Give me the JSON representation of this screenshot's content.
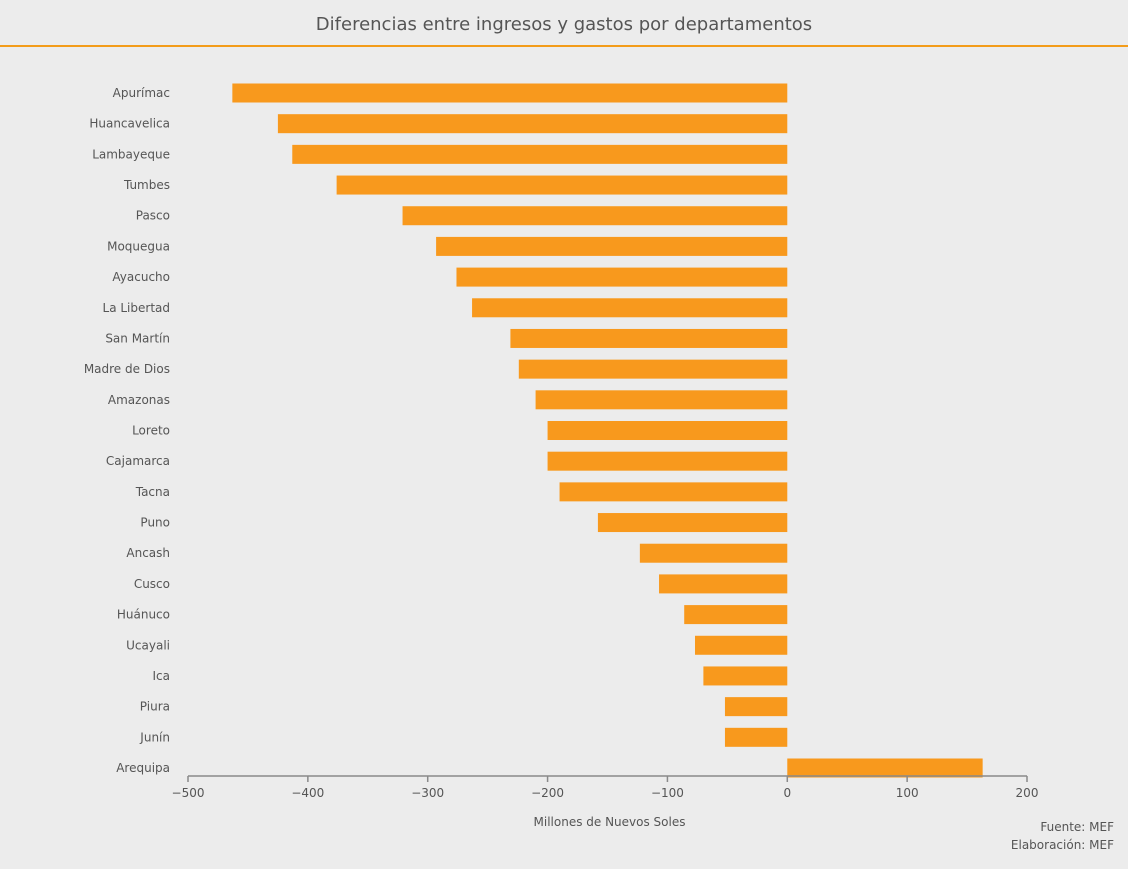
{
  "title": "Diferencias entre ingresos y gastos por departamentos",
  "footer": {
    "source": "Fuente: MEF",
    "credit": "Elaboración: MEF"
  },
  "chart_data": {
    "type": "bar",
    "orientation": "horizontal",
    "title": "Diferencias entre ingresos y gastos por departamentos",
    "xlabel": "Millones de Nuevos Soles",
    "ylabel": "",
    "xlim": [
      -500,
      200
    ],
    "xticks": [
      -500,
      -400,
      -300,
      -200,
      -100,
      0,
      100,
      200
    ],
    "xtick_labels": [
      "−500",
      "−400",
      "−300",
      "−200",
      "−100",
      "0",
      "100",
      "200"
    ],
    "grid": false,
    "bar_color": "#f8991d",
    "categories": [
      "Apurímac",
      "Huancavelica",
      "Lambayeque",
      "Tumbes",
      "Pasco",
      "Moquegua",
      "Ayacucho",
      "La Libertad",
      "San Martín",
      "Madre de Dios",
      "Amazonas",
      "Loreto",
      "Cajamarca",
      "Tacna",
      "Puno",
      "Ancash",
      "Cusco",
      "Huánuco",
      "Ucayali",
      "Ica",
      "Piura",
      "Junín",
      "Arequipa"
    ],
    "values": [
      -463,
      -425,
      -413,
      -376,
      -321,
      -293,
      -276,
      -263,
      -231,
      -224,
      -210,
      -200,
      -200,
      -190,
      -158,
      -123,
      -107,
      -86,
      -77,
      -70,
      -52,
      -52,
      163
    ]
  }
}
